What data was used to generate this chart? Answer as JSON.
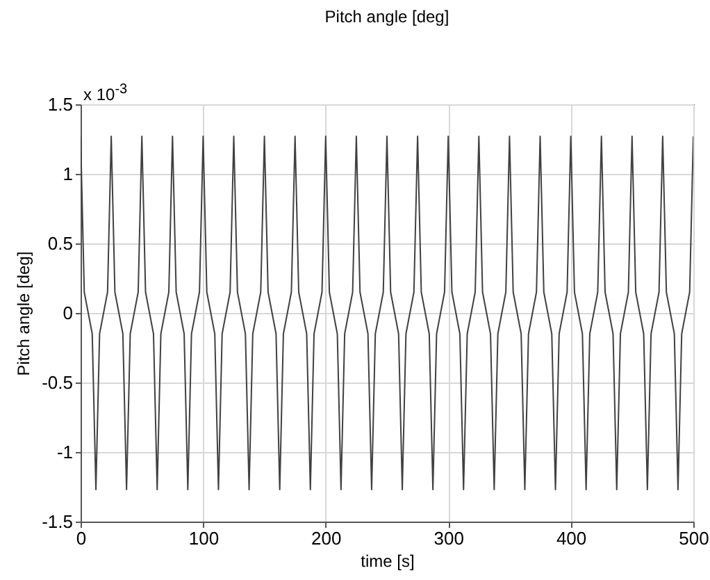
{
  "chart_data": {
    "type": "line",
    "title": "Pitch angle [deg]",
    "xlabel": "time [s]",
    "ylabel": "Pitch angle [deg]",
    "annotations": [
      "x 10$^{-3}$"
    ],
    "xlim": [
      0,
      500
    ],
    "xticks": [
      0,
      100,
      200,
      300,
      400,
      500
    ],
    "ylim": [
      -1.5,
      1.5
    ],
    "yticks": [
      -1.5,
      -1,
      -0.5,
      0,
      0.5,
      1,
      1.5
    ],
    "grid": true,
    "line_style": "solid",
    "series": [
      {
        "color": "#404040",
        "x": [
          0,
          3,
          9.5,
          12.5,
          15.5,
          22,
          25,
          28,
          34.5,
          37.5,
          40.5,
          47,
          50,
          53,
          59.5,
          62.5,
          65.5,
          72,
          75,
          78,
          84.5,
          87.5,
          90.5,
          97,
          100,
          103,
          109.5,
          112.5,
          115.5,
          122,
          125,
          128,
          134.5,
          137.5,
          140.5,
          147,
          150,
          153,
          159.5,
          162.5,
          165.5,
          172,
          175,
          178,
          184.5,
          187.5,
          190.5,
          197,
          200,
          203,
          209.5,
          212.5,
          215.5,
          222,
          225,
          228,
          234.5,
          237.5,
          240.5,
          247,
          250,
          253,
          259.5,
          262.5,
          265.5,
          272,
          275,
          278,
          284.5,
          287.5,
          290.5,
          297,
          300,
          303,
          309.5,
          312.5,
          315.5,
          322,
          325,
          328,
          334.5,
          337.5,
          340.5,
          347,
          350,
          353,
          359.5,
          362.5,
          365.5,
          372,
          375,
          378,
          384.5,
          387.5,
          390.5,
          397,
          400,
          403,
          409.5,
          412.5,
          415.5,
          422,
          425,
          428,
          434.5,
          437.5,
          440.5,
          447,
          450,
          453,
          459.5,
          462.5,
          465.5,
          472,
          475,
          478,
          484.5,
          487.5,
          490.5,
          497,
          500
        ],
        "values": [
          1.27,
          0.15,
          -0.15,
          -1.27,
          -0.15,
          0.15,
          1.27,
          0.15,
          -0.15,
          -1.27,
          -0.15,
          0.15,
          1.27,
          0.15,
          -0.15,
          -1.27,
          -0.15,
          0.15,
          1.27,
          0.15,
          -0.15,
          -1.27,
          -0.15,
          0.15,
          1.27,
          0.15,
          -0.15,
          -1.27,
          -0.15,
          0.15,
          1.27,
          0.15,
          -0.15,
          -1.27,
          -0.15,
          0.15,
          1.27,
          0.15,
          -0.15,
          -1.27,
          -0.15,
          0.15,
          1.27,
          0.15,
          -0.15,
          -1.27,
          -0.15,
          0.15,
          1.27,
          0.15,
          -0.15,
          -1.27,
          -0.15,
          0.15,
          1.27,
          0.15,
          -0.15,
          -1.27,
          -0.15,
          0.15,
          1.27,
          0.15,
          -0.15,
          -1.27,
          -0.15,
          0.15,
          1.27,
          0.15,
          -0.15,
          -1.27,
          -0.15,
          0.15,
          1.27,
          0.15,
          -0.15,
          -1.27,
          -0.15,
          0.15,
          1.27,
          0.15,
          -0.15,
          -1.27,
          -0.15,
          0.15,
          1.27,
          0.15,
          -0.15,
          -1.27,
          -0.15,
          0.15,
          1.27,
          0.15,
          -0.15,
          -1.27,
          -0.15,
          0.15,
          1.27,
          0.15,
          -0.15,
          -1.27,
          -0.15,
          0.15,
          1.27,
          0.15,
          -0.15,
          -1.27,
          -0.15,
          0.15,
          1.27,
          0.15,
          -0.15,
          -1.27,
          -0.15,
          0.15,
          1.27,
          0.15,
          -0.15,
          -1.27,
          -0.15,
          0.15,
          1.27
        ]
      }
    ]
  }
}
